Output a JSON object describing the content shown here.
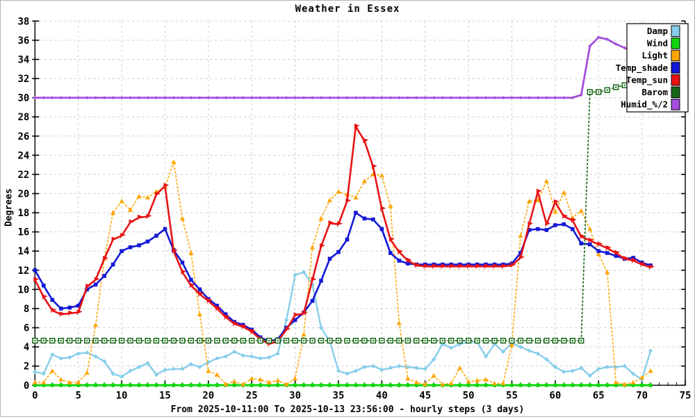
{
  "window": {
    "title": "Weather in Essex"
  },
  "colors": {
    "background": "#ffffff",
    "frame": "#000000",
    "grid": "#c9c9c9",
    "border": "#b4b4b4",
    "legend_bg": "#ffffff",
    "legend_border": "#000000"
  },
  "chart_data": {
    "type": "line",
    "title": "Weather in Essex",
    "xlabel": "From 2025-10-11:00 To 2025-10-13 23:56:00 - hourly steps (3 days)",
    "ylabel": "Degrees",
    "xlim": [
      0,
      75
    ],
    "ylim": [
      0,
      38
    ],
    "grid": true,
    "legend_position": "top-right",
    "x_ticks": [
      0,
      5,
      10,
      15,
      20,
      25,
      30,
      35,
      40,
      45,
      50,
      55,
      60,
      65,
      70,
      75
    ],
    "y_ticks": [
      0,
      2,
      4,
      6,
      8,
      10,
      12,
      14,
      16,
      18,
      20,
      22,
      24,
      26,
      28,
      30,
      32,
      34,
      36,
      38
    ],
    "x_minor_step": 1,
    "x": [
      0,
      1,
      2,
      3,
      4,
      5,
      6,
      7,
      8,
      9,
      10,
      11,
      12,
      13,
      14,
      15,
      16,
      17,
      18,
      19,
      20,
      21,
      22,
      23,
      24,
      25,
      26,
      27,
      28,
      29,
      30,
      31,
      32,
      33,
      34,
      35,
      36,
      37,
      38,
      39,
      40,
      41,
      42,
      43,
      44,
      45,
      46,
      47,
      48,
      49,
      50,
      51,
      52,
      53,
      54,
      55,
      56,
      57,
      58,
      59,
      60,
      61,
      62,
      63,
      64,
      65,
      66,
      67,
      68,
      69,
      70,
      71
    ],
    "series": [
      {
        "name": "Damp",
        "color": "#87CEEB",
        "marker": "diamond",
        "line": "solid",
        "width": 2.4,
        "marker_size": 3.2,
        "values": [
          1.4,
          1.2,
          3.2,
          2.8,
          2.9,
          3.3,
          3.4,
          3.0,
          2.5,
          1.2,
          0.9,
          1.5,
          1.9,
          2.3,
          1.1,
          1.6,
          1.7,
          1.7,
          2.2,
          1.9,
          2.4,
          2.8,
          3.0,
          3.5,
          3.1,
          3.0,
          2.8,
          2.9,
          3.3,
          6.8,
          11.5,
          11.8,
          10.5,
          6.0,
          4.6,
          1.5,
          1.2,
          1.5,
          1.9,
          2.0,
          1.6,
          1.8,
          2.0,
          1.9,
          1.8,
          1.7,
          2.7,
          4.3,
          3.9,
          4.3,
          4.5,
          4.5,
          3.0,
          4.3,
          3.5,
          4.4,
          4.0,
          3.6,
          3.3,
          2.7,
          1.9,
          1.4,
          1.5,
          1.8,
          1.0,
          1.7,
          1.9,
          1.9,
          2.0,
          1.2,
          0.6,
          3.6
        ]
      },
      {
        "name": "Wind",
        "color": "#0FD60F",
        "marker": "circle",
        "line": "solid",
        "width": 3,
        "marker_size": 3,
        "values": [
          0,
          0,
          0,
          0,
          0,
          0,
          0,
          0,
          0,
          0,
          0,
          0,
          0,
          0,
          0,
          0,
          0,
          0,
          0,
          0,
          0,
          0,
          0,
          0,
          0,
          0,
          0,
          0,
          0,
          0,
          0,
          0,
          0,
          0,
          0,
          0,
          0,
          0,
          0,
          0,
          0,
          0,
          0,
          0,
          0,
          0,
          0,
          0,
          0,
          0,
          0,
          0,
          0,
          0,
          0,
          0,
          0,
          0,
          0,
          0,
          0,
          0,
          0,
          0,
          0,
          0,
          0,
          0,
          0,
          0,
          0,
          0
        ]
      },
      {
        "name": "Light",
        "color": "#FFA500",
        "marker": "triangle",
        "line": "dotted",
        "width": 1.6,
        "marker_size": 3.6,
        "values": [
          0.3,
          0.3,
          1.5,
          0.6,
          0.3,
          0.3,
          1.3,
          6.3,
          13.2,
          18.0,
          19.2,
          18.3,
          19.7,
          19.6,
          20.2,
          20.7,
          23.3,
          17.4,
          13.8,
          7.4,
          1.5,
          1.1,
          0.1,
          0.4,
          0.1,
          0.7,
          0.6,
          0.3,
          0.5,
          0.1,
          0.7,
          5.3,
          14.4,
          17.4,
          19.3,
          20.2,
          19.9,
          19.6,
          21.3,
          22.0,
          21.9,
          18.7,
          6.5,
          0.7,
          0.3,
          0.1,
          1.0,
          0.1,
          0.2,
          1.8,
          0.4,
          0.5,
          0.6,
          0.2,
          0.2,
          4.2,
          15.6,
          19.2,
          19.3,
          21.3,
          18.1,
          20.1,
          17.5,
          18.2,
          16.3,
          13.7,
          11.8,
          0.3,
          0.1,
          0.3,
          0.8,
          1.5
        ]
      },
      {
        "name": "Temp_shade",
        "color": "#1318D6",
        "marker": "square",
        "line": "solid",
        "width": 2.6,
        "marker_size": 2.8,
        "values": [
          12.0,
          10.4,
          8.9,
          8.0,
          8.1,
          8.3,
          10.0,
          10.5,
          11.4,
          12.6,
          14.0,
          14.4,
          14.6,
          15.0,
          15.6,
          16.3,
          14.1,
          12.8,
          11.0,
          10.0,
          9.0,
          8.3,
          7.4,
          6.6,
          6.3,
          5.8,
          5.0,
          4.6,
          4.8,
          6.0,
          6.8,
          7.6,
          8.8,
          10.9,
          13.2,
          13.9,
          15.2,
          18.0,
          17.4,
          17.3,
          16.3,
          13.8,
          13.0,
          12.7,
          12.6,
          12.6,
          12.6,
          12.6,
          12.6,
          12.6,
          12.6,
          12.6,
          12.6,
          12.6,
          12.6,
          12.7,
          13.8,
          16.2,
          16.3,
          16.2,
          16.7,
          16.8,
          16.3,
          14.8,
          14.7,
          14.0,
          13.8,
          13.5,
          13.2,
          13.3,
          12.8,
          12.5
        ]
      },
      {
        "name": "Temp_sun",
        "color": "#E81212",
        "marker": "flag",
        "line": "solid",
        "width": 2.6,
        "marker_size": 3.5,
        "values": [
          11.0,
          9.2,
          7.8,
          7.4,
          7.5,
          7.6,
          10.3,
          11.0,
          13.2,
          15.2,
          15.6,
          17.0,
          17.5,
          17.6,
          19.9,
          20.8,
          14.0,
          11.8,
          10.4,
          9.5,
          8.8,
          8.0,
          7.1,
          6.4,
          6.1,
          5.6,
          4.8,
          4.3,
          4.6,
          5.8,
          7.3,
          7.5,
          11.0,
          14.5,
          16.9,
          16.8,
          19.2,
          27.0,
          25.5,
          22.8,
          18.4,
          15.2,
          13.9,
          13.0,
          12.5,
          12.4,
          12.4,
          12.4,
          12.4,
          12.4,
          12.4,
          12.4,
          12.4,
          12.4,
          12.4,
          12.5,
          13.3,
          16.8,
          20.2,
          16.8,
          19.1,
          17.6,
          17.2,
          15.5,
          15.1,
          14.7,
          14.3,
          13.8,
          13.2,
          13.0,
          12.6,
          12.3
        ]
      },
      {
        "name": "Barom",
        "color": "#176617",
        "marker": "open-square",
        "line": "dotted",
        "width": 1.7,
        "marker_size": 3.4,
        "values": [
          4.65,
          4.65,
          4.65,
          4.65,
          4.65,
          4.65,
          4.65,
          4.65,
          4.65,
          4.65,
          4.65,
          4.65,
          4.65,
          4.65,
          4.65,
          4.65,
          4.65,
          4.65,
          4.65,
          4.65,
          4.65,
          4.65,
          4.65,
          4.65,
          4.65,
          4.65,
          4.65,
          4.65,
          4.65,
          4.65,
          4.65,
          4.65,
          4.65,
          4.65,
          4.65,
          4.65,
          4.65,
          4.65,
          4.65,
          4.65,
          4.65,
          4.65,
          4.65,
          4.65,
          4.65,
          4.65,
          4.65,
          4.65,
          4.65,
          4.65,
          4.65,
          4.65,
          4.65,
          4.65,
          4.65,
          4.65,
          4.65,
          4.65,
          4.65,
          4.65,
          4.65,
          4.65,
          4.65,
          4.65,
          30.6,
          30.6,
          30.8,
          31.1,
          31.3,
          31.5,
          31.6,
          31.8
        ]
      },
      {
        "name": "Humid_%/2",
        "color": "#A44FDB",
        "marker": "diamond",
        "line": "solid",
        "width": 2.8,
        "marker_size": 2.5,
        "values": [
          30,
          30,
          30,
          30,
          30,
          30,
          30,
          30,
          30,
          30,
          30,
          30,
          30,
          30,
          30,
          30,
          30,
          30,
          30,
          30,
          30,
          30,
          30,
          30,
          30,
          30,
          30,
          30,
          30,
          30,
          30,
          30,
          30,
          30,
          30,
          30,
          30,
          30,
          30,
          30,
          30,
          30,
          30,
          30,
          30,
          30,
          30,
          30,
          30,
          30,
          30,
          30,
          30,
          30,
          30,
          30,
          30,
          30,
          30,
          30,
          30,
          30,
          30,
          30.3,
          35.4,
          36.3,
          36.1,
          35.6,
          35.2,
          34.9,
          34.6,
          34.4
        ]
      }
    ]
  }
}
